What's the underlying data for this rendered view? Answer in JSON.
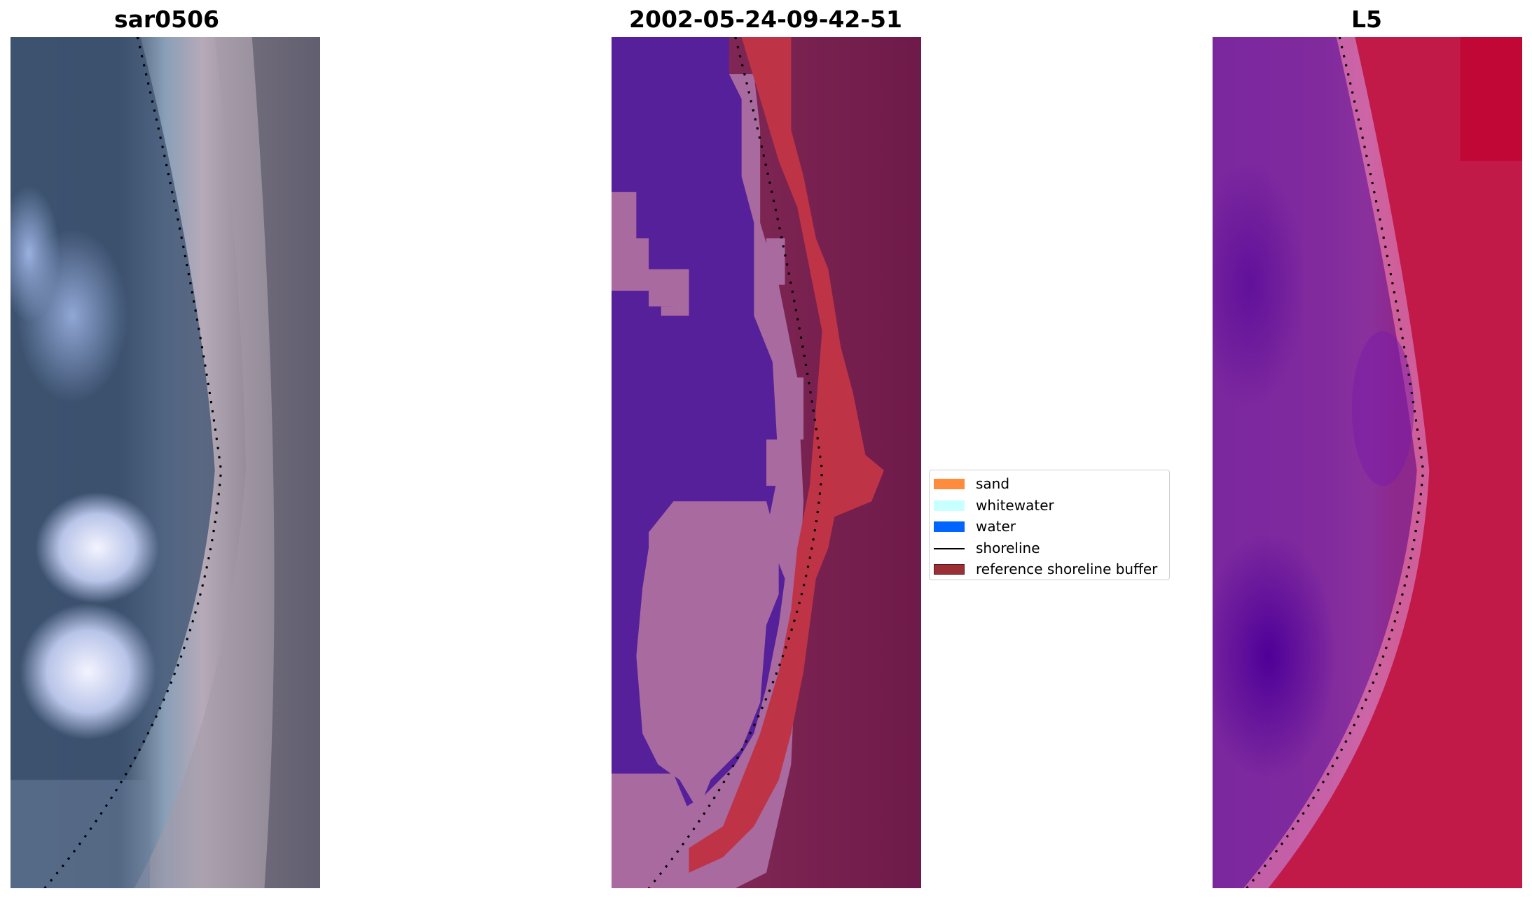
{
  "panels": [
    {
      "title": "sar0506",
      "kind": "rgb"
    },
    {
      "title": "2002-05-24-09-42-51",
      "kind": "classified"
    },
    {
      "title": "L5",
      "kind": "index"
    }
  ],
  "legend": {
    "items": [
      {
        "label": "sand",
        "color": "#ff8c3c",
        "kind": "patch"
      },
      {
        "label": "whitewater",
        "color": "#c8ffff",
        "kind": "patch"
      },
      {
        "label": "water",
        "color": "#0064ff",
        "kind": "patch"
      },
      {
        "label": "shoreline",
        "color": "#000000",
        "kind": "line"
      },
      {
        "label": "reference shoreline buffer",
        "color": "#9b2f35",
        "kind": "patch"
      }
    ]
  },
  "colors": {
    "classified_water": "#55209a",
    "classified_whitewater": "#a96a9f",
    "classified_buffer": "#be3446",
    "classified_land": "#7a2050",
    "index_low": "#5a0a9a",
    "index_high": "#c8002e"
  }
}
